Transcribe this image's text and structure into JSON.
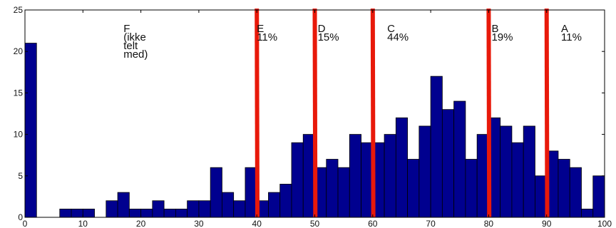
{
  "chart_data": {
    "type": "bar",
    "title": "",
    "xlabel": "",
    "ylabel": "",
    "xlim": [
      0,
      100
    ],
    "ylim": [
      0,
      25
    ],
    "bin_width": 2,
    "x_ticks": [
      "0",
      "10",
      "20",
      "30",
      "40",
      "50",
      "60",
      "70",
      "80",
      "90",
      "100"
    ],
    "y_ticks": [
      "0",
      "5",
      "10",
      "15",
      "20",
      "25"
    ],
    "bar_color": "#00008f",
    "threshold_color": "#e8190a",
    "grid": false,
    "bins": [
      {
        "x": 0,
        "v": 21
      },
      {
        "x": 2,
        "v": 0
      },
      {
        "x": 4,
        "v": 0
      },
      {
        "x": 6,
        "v": 1
      },
      {
        "x": 8,
        "v": 1
      },
      {
        "x": 10,
        "v": 1
      },
      {
        "x": 12,
        "v": 0
      },
      {
        "x": 14,
        "v": 2
      },
      {
        "x": 16,
        "v": 3
      },
      {
        "x": 18,
        "v": 1
      },
      {
        "x": 20,
        "v": 1
      },
      {
        "x": 22,
        "v": 2
      },
      {
        "x": 24,
        "v": 1
      },
      {
        "x": 26,
        "v": 1
      },
      {
        "x": 28,
        "v": 2
      },
      {
        "x": 30,
        "v": 2
      },
      {
        "x": 32,
        "v": 6
      },
      {
        "x": 34,
        "v": 3
      },
      {
        "x": 36,
        "v": 2
      },
      {
        "x": 38,
        "v": 6
      },
      {
        "x": 40,
        "v": 2
      },
      {
        "x": 42,
        "v": 3
      },
      {
        "x": 44,
        "v": 4
      },
      {
        "x": 46,
        "v": 9
      },
      {
        "x": 48,
        "v": 10
      },
      {
        "x": 50,
        "v": 6
      },
      {
        "x": 52,
        "v": 7
      },
      {
        "x": 54,
        "v": 6
      },
      {
        "x": 56,
        "v": 10
      },
      {
        "x": 58,
        "v": 9
      },
      {
        "x": 60,
        "v": 9
      },
      {
        "x": 62,
        "v": 10
      },
      {
        "x": 64,
        "v": 12
      },
      {
        "x": 66,
        "v": 7
      },
      {
        "x": 68,
        "v": 11
      },
      {
        "x": 70,
        "v": 17
      },
      {
        "x": 72,
        "v": 13
      },
      {
        "x": 74,
        "v": 14
      },
      {
        "x": 76,
        "v": 7
      },
      {
        "x": 78,
        "v": 10
      },
      {
        "x": 80,
        "v": 12
      },
      {
        "x": 82,
        "v": 11
      },
      {
        "x": 84,
        "v": 9
      },
      {
        "x": 86,
        "v": 11
      },
      {
        "x": 88,
        "v": 5
      },
      {
        "x": 90,
        "v": 8
      },
      {
        "x": 92,
        "v": 7
      },
      {
        "x": 94,
        "v": 6
      },
      {
        "x": 96,
        "v": 1
      },
      {
        "x": 98,
        "v": 5
      }
    ],
    "thresholds": [
      40,
      50,
      60,
      80,
      90
    ],
    "annotations": [
      {
        "lines": [
          "F",
          "(ikke",
          "telt",
          "med)"
        ],
        "x": 17,
        "y": 23.2
      },
      {
        "lines": [
          "E",
          "11%"
        ],
        "x": 40,
        "y": 23.2
      },
      {
        "lines": [
          "D",
          "15%"
        ],
        "x": 50.5,
        "y": 23.2
      },
      {
        "lines": [
          "C",
          "44%"
        ],
        "x": 62.5,
        "y": 23.2
      },
      {
        "lines": [
          "B",
          "19%"
        ],
        "x": 80.5,
        "y": 23.2
      },
      {
        "lines": [
          "A",
          "11%"
        ],
        "x": 92.5,
        "y": 23.2
      }
    ]
  }
}
